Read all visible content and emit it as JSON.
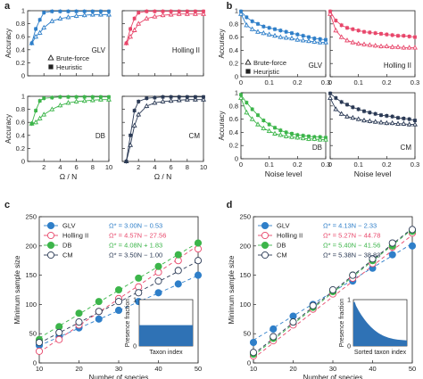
{
  "panel_letters": [
    "a",
    "b",
    "c",
    "d"
  ],
  "colors": {
    "GLV": "#2f7fc9",
    "Holling II": "#e8476b",
    "DB": "#3cb54a",
    "CM": "#2b3a55",
    "axis": "#222222",
    "inset_fill": "#2f72b5"
  },
  "chart_data": [
    {
      "id": "a-GLV",
      "type": "line",
      "panel_label": "GLV",
      "xlabel": "",
      "ylabel": "Accuracy",
      "xlim": [
        0,
        10
      ],
      "ylim": [
        0,
        1
      ],
      "xticks": [
        2,
        4,
        6,
        8,
        10
      ],
      "yticks": [
        0,
        0.2,
        0.4,
        0.6,
        0.8,
        1
      ],
      "ticklabels_x": false,
      "ticklabels_y": true,
      "legend": [
        "Brute-force",
        "Heuristic"
      ],
      "series": [
        {
          "name": "Brute-force",
          "marker": "triangle-open",
          "x": [
            0.5,
            1,
            1.5,
            2,
            3,
            4,
            5,
            6,
            7,
            8,
            9,
            10
          ],
          "y": [
            0.5,
            0.6,
            0.66,
            0.74,
            0.84,
            0.88,
            0.9,
            0.92,
            0.93,
            0.94,
            0.94,
            0.94
          ]
        },
        {
          "name": "Heuristic",
          "marker": "square-filled",
          "x": [
            0.5,
            1,
            1.5,
            2,
            3,
            4,
            5,
            6,
            7,
            8,
            9,
            10
          ],
          "y": [
            0.5,
            0.72,
            0.86,
            0.97,
            0.99,
            0.99,
            0.99,
            0.99,
            0.99,
            0.99,
            0.99,
            0.99
          ]
        }
      ]
    },
    {
      "id": "a-Holling",
      "type": "line",
      "panel_label": "Holling II",
      "xlabel": "",
      "ylabel": "",
      "xlim": [
        0,
        10
      ],
      "ylim": [
        0,
        1
      ],
      "xticks": [
        2,
        4,
        6,
        8,
        10
      ],
      "yticks": [
        0,
        0.2,
        0.4,
        0.6,
        0.8,
        1
      ],
      "ticklabels_x": false,
      "ticklabels_y": false,
      "series": [
        {
          "name": "Brute-force",
          "marker": "triangle-open",
          "x": [
            0.5,
            1,
            1.5,
            2,
            3,
            4,
            5,
            6,
            7,
            8,
            9,
            10
          ],
          "y": [
            0.5,
            0.6,
            0.7,
            0.8,
            0.88,
            0.91,
            0.93,
            0.94,
            0.95,
            0.95,
            0.95,
            0.95
          ]
        },
        {
          "name": "Heuristic",
          "marker": "square-filled",
          "x": [
            0.5,
            1,
            1.5,
            2,
            3,
            4,
            5,
            6,
            7,
            8,
            9,
            10
          ],
          "y": [
            0.5,
            0.72,
            0.88,
            0.97,
            0.99,
            0.99,
            0.99,
            0.99,
            0.99,
            0.99,
            0.99,
            0.99
          ]
        }
      ]
    },
    {
      "id": "a-DB",
      "type": "line",
      "panel_label": "DB",
      "xlabel": "Ω / N",
      "ylabel": "Accuracy",
      "xlim": [
        0,
        10
      ],
      "ylim": [
        0,
        1
      ],
      "xticks": [
        2,
        4,
        6,
        8,
        10
      ],
      "yticks": [
        0,
        0.2,
        0.4,
        0.6,
        0.8,
        1
      ],
      "ticklabels_x": true,
      "ticklabels_y": true,
      "series": [
        {
          "name": "Brute-force",
          "marker": "triangle-open",
          "x": [
            0.5,
            1,
            1.5,
            2,
            3,
            4,
            5,
            6,
            7,
            8,
            9,
            10
          ],
          "y": [
            0.58,
            0.6,
            0.66,
            0.72,
            0.8,
            0.86,
            0.9,
            0.92,
            0.93,
            0.94,
            0.95,
            0.95
          ]
        },
        {
          "name": "Heuristic",
          "marker": "square-filled",
          "x": [
            0.5,
            1,
            1.5,
            2,
            3,
            4,
            5,
            6,
            7,
            8,
            9,
            10
          ],
          "y": [
            0.58,
            0.78,
            0.93,
            0.97,
            0.98,
            0.99,
            0.99,
            0.99,
            0.99,
            0.99,
            0.99,
            0.99
          ]
        }
      ]
    },
    {
      "id": "a-CM",
      "type": "line",
      "panel_label": "CM",
      "xlabel": "Ω / N",
      "ylabel": "",
      "xlim": [
        0,
        10
      ],
      "ylim": [
        0,
        1
      ],
      "xticks": [
        2,
        4,
        6,
        8,
        10
      ],
      "yticks": [
        0,
        0.2,
        0.4,
        0.6,
        0.8,
        1
      ],
      "ticklabels_x": true,
      "ticklabels_y": false,
      "series": [
        {
          "name": "Brute-force",
          "marker": "triangle-open",
          "x": [
            0.5,
            1,
            1.5,
            2,
            3,
            4,
            5,
            6,
            7,
            8,
            9,
            10
          ],
          "y": [
            0.0,
            0.25,
            0.55,
            0.72,
            0.85,
            0.9,
            0.92,
            0.93,
            0.94,
            0.95,
            0.95,
            0.95
          ]
        },
        {
          "name": "Heuristic",
          "marker": "square-filled",
          "x": [
            0.5,
            1,
            1.5,
            2,
            3,
            4,
            5,
            6,
            7,
            8,
            9,
            10
          ],
          "y": [
            0.0,
            0.4,
            0.78,
            0.92,
            0.97,
            0.98,
            0.99,
            0.99,
            0.99,
            0.99,
            0.99,
            0.99
          ]
        }
      ]
    },
    {
      "id": "b-GLV",
      "type": "line",
      "panel_label": "GLV",
      "xlabel": "",
      "ylabel": "Accuracy",
      "xlim": [
        0,
        0.3
      ],
      "ylim": [
        0,
        1
      ],
      "xticks": [
        0,
        0.1,
        0.2,
        0.3
      ],
      "yticks": [
        0,
        0.2,
        0.4,
        0.6,
        0.8,
        1
      ],
      "ticklabels_x": true,
      "ticklabels_y": true,
      "legend": [
        "Brute-force",
        "Heuristic"
      ],
      "series": [
        {
          "name": "Heuristic",
          "marker": "square-filled",
          "x": [
            0,
            0.02,
            0.04,
            0.06,
            0.08,
            0.1,
            0.12,
            0.14,
            0.16,
            0.18,
            0.2,
            0.22,
            0.24,
            0.26,
            0.28,
            0.3
          ],
          "y": [
            0.99,
            0.9,
            0.84,
            0.8,
            0.76,
            0.74,
            0.72,
            0.7,
            0.68,
            0.66,
            0.64,
            0.62,
            0.6,
            0.58,
            0.57,
            0.56
          ]
        },
        {
          "name": "Brute-force",
          "marker": "triangle-open",
          "x": [
            0,
            0.02,
            0.04,
            0.06,
            0.08,
            0.1,
            0.12,
            0.14,
            0.16,
            0.18,
            0.2,
            0.22,
            0.24,
            0.26,
            0.28,
            0.3
          ],
          "y": [
            0.95,
            0.78,
            0.72,
            0.68,
            0.66,
            0.64,
            0.62,
            0.6,
            0.59,
            0.58,
            0.56,
            0.55,
            0.54,
            0.53,
            0.52,
            0.52
          ]
        }
      ]
    },
    {
      "id": "b-Holling",
      "type": "line",
      "panel_label": "Holling II",
      "xlabel": "",
      "ylabel": "",
      "xlim": [
        0,
        0.3
      ],
      "ylim": [
        0,
        1
      ],
      "xticks": [
        0,
        0.1,
        0.2,
        0.3
      ],
      "yticks": [
        0,
        0.2,
        0.4,
        0.6,
        0.8,
        1
      ],
      "ticklabels_x": true,
      "ticklabels_y": false,
      "series": [
        {
          "name": "Heuristic",
          "marker": "square-filled",
          "x": [
            0,
            0.02,
            0.04,
            0.06,
            0.08,
            0.1,
            0.12,
            0.14,
            0.16,
            0.18,
            0.2,
            0.22,
            0.24,
            0.26,
            0.28,
            0.3
          ],
          "y": [
            0.99,
            0.85,
            0.78,
            0.74,
            0.72,
            0.7,
            0.68,
            0.67,
            0.66,
            0.65,
            0.64,
            0.63,
            0.62,
            0.62,
            0.61,
            0.6
          ]
        },
        {
          "name": "Brute-force",
          "marker": "triangle-open",
          "x": [
            0,
            0.02,
            0.04,
            0.06,
            0.08,
            0.1,
            0.12,
            0.14,
            0.16,
            0.18,
            0.2,
            0.22,
            0.24,
            0.26,
            0.28,
            0.3
          ],
          "y": [
            0.95,
            0.7,
            0.6,
            0.55,
            0.52,
            0.5,
            0.49,
            0.48,
            0.47,
            0.46,
            0.46,
            0.45,
            0.45,
            0.44,
            0.44,
            0.44
          ]
        }
      ]
    },
    {
      "id": "b-DB",
      "type": "line",
      "panel_label": "DB",
      "xlabel": "Noise level",
      "ylabel": "Accuracy",
      "xlim": [
        0,
        0.3
      ],
      "ylim": [
        0,
        1
      ],
      "xticks": [
        0,
        0.1,
        0.2,
        0.3
      ],
      "yticks": [
        0,
        0.2,
        0.4,
        0.6,
        0.8,
        1
      ],
      "ticklabels_x": true,
      "ticklabels_y": true,
      "series": [
        {
          "name": "Heuristic",
          "marker": "square-filled",
          "x": [
            0,
            0.02,
            0.04,
            0.06,
            0.08,
            0.1,
            0.12,
            0.14,
            0.16,
            0.18,
            0.2,
            0.22,
            0.24,
            0.26,
            0.28,
            0.3
          ],
          "y": [
            0.97,
            0.85,
            0.75,
            0.66,
            0.58,
            0.52,
            0.47,
            0.43,
            0.4,
            0.38,
            0.36,
            0.35,
            0.34,
            0.33,
            0.33,
            0.32
          ]
        },
        {
          "name": "Brute-force",
          "marker": "triangle-open",
          "x": [
            0,
            0.02,
            0.04,
            0.06,
            0.08,
            0.1,
            0.12,
            0.14,
            0.16,
            0.18,
            0.2,
            0.22,
            0.24,
            0.26,
            0.28,
            0.3
          ],
          "y": [
            0.92,
            0.7,
            0.6,
            0.52,
            0.46,
            0.42,
            0.38,
            0.36,
            0.34,
            0.33,
            0.32,
            0.31,
            0.3,
            0.3,
            0.29,
            0.29
          ]
        }
      ]
    },
    {
      "id": "b-CM",
      "type": "line",
      "panel_label": "CM",
      "xlabel": "Noise level",
      "ylabel": "",
      "xlim": [
        0,
        0.3
      ],
      "ylim": [
        0,
        1
      ],
      "xticks": [
        0,
        0.1,
        0.2,
        0.3
      ],
      "yticks": [
        0,
        0.2,
        0.4,
        0.6,
        0.8,
        1
      ],
      "ticklabels_x": true,
      "ticklabels_y": false,
      "series": [
        {
          "name": "Heuristic",
          "marker": "square-filled",
          "x": [
            0,
            0.02,
            0.04,
            0.06,
            0.08,
            0.1,
            0.12,
            0.14,
            0.16,
            0.18,
            0.2,
            0.22,
            0.24,
            0.26,
            0.28,
            0.3
          ],
          "y": [
            0.99,
            0.92,
            0.86,
            0.82,
            0.78,
            0.75,
            0.72,
            0.7,
            0.68,
            0.66,
            0.65,
            0.64,
            0.62,
            0.61,
            0.6,
            0.58
          ]
        },
        {
          "name": "Brute-force",
          "marker": "triangle-open",
          "x": [
            0,
            0.02,
            0.04,
            0.06,
            0.08,
            0.1,
            0.12,
            0.14,
            0.16,
            0.18,
            0.2,
            0.22,
            0.24,
            0.26,
            0.28,
            0.3
          ],
          "y": [
            0.92,
            0.75,
            0.68,
            0.64,
            0.62,
            0.6,
            0.58,
            0.57,
            0.56,
            0.55,
            0.54,
            0.54,
            0.53,
            0.53,
            0.52,
            0.52
          ]
        }
      ]
    },
    {
      "id": "c",
      "type": "scatter",
      "xlabel": "Number of species",
      "ylabel": "Minimum sample size",
      "xlim": [
        10,
        50
      ],
      "ylim": [
        0,
        250
      ],
      "xticks": [
        10,
        20,
        30,
        40,
        50
      ],
      "yticks": [
        0,
        50,
        100,
        150,
        200,
        250
      ],
      "legend_placement": "top-left",
      "series": [
        {
          "name": "GLV",
          "marker": "circle-filled",
          "fit": "Ω* = 3.00N − 0.53",
          "slope": 3.0,
          "intercept": -0.53,
          "x": [
            10,
            15,
            20,
            25,
            30,
            35,
            40,
            45,
            50
          ],
          "y": [
            30,
            45,
            60,
            75,
            90,
            105,
            120,
            135,
            150
          ]
        },
        {
          "name": "Holling II",
          "marker": "circle-open",
          "fit": "Ω* = 4.57N − 27.56",
          "slope": 4.57,
          "intercept": -27.56,
          "x": [
            10,
            15,
            20,
            25,
            30,
            35,
            40,
            45,
            50
          ],
          "y": [
            20,
            40,
            65,
            88,
            110,
            130,
            155,
            175,
            195
          ]
        },
        {
          "name": "DB",
          "marker": "circle-filled",
          "fit": "Ω* = 4.08N + 1.83",
          "slope": 4.08,
          "intercept": 1.83,
          "x": [
            10,
            15,
            20,
            25,
            30,
            35,
            40,
            45,
            50
          ],
          "y": [
            40,
            62,
            85,
            105,
            125,
            145,
            165,
            185,
            205
          ]
        },
        {
          "name": "CM",
          "marker": "circle-open",
          "fit": "Ω* = 3.50N − 1.00",
          "slope": 3.5,
          "intercept": -1.0,
          "x": [
            10,
            15,
            20,
            25,
            30,
            35,
            40,
            45,
            50
          ],
          "y": [
            35,
            52,
            70,
            88,
            105,
            120,
            140,
            158,
            175
          ]
        }
      ],
      "inset": {
        "ylabel": "Presence fraction",
        "xlabel": "Taxon index",
        "yticks": [
          0,
          1
        ],
        "shape": "flat",
        "level": 0.45
      }
    },
    {
      "id": "d",
      "type": "scatter",
      "xlabel": "Number of species",
      "ylabel": "Minimum sample size",
      "xlim": [
        10,
        50
      ],
      "ylim": [
        0,
        250
      ],
      "xticks": [
        10,
        20,
        30,
        40,
        50
      ],
      "yticks": [
        0,
        50,
        100,
        150,
        200,
        250
      ],
      "legend_placement": "top-left",
      "series": [
        {
          "name": "GLV",
          "marker": "circle-filled",
          "fit": "Ω* = 4.13N − 2.33",
          "slope": 4.13,
          "intercept": -2.33,
          "x": [
            10,
            15,
            20,
            25,
            30,
            35,
            40,
            45,
            50
          ],
          "y": [
            35,
            58,
            80,
            100,
            120,
            140,
            162,
            185,
            200
          ]
        },
        {
          "name": "Holling II",
          "marker": "circle-open",
          "fit": "Ω* = 5.27N − 44.78",
          "slope": 5.27,
          "intercept": -44.78,
          "x": [
            10,
            15,
            20,
            25,
            30,
            35,
            40,
            45,
            50
          ],
          "y": [
            12,
            38,
            65,
            92,
            118,
            145,
            170,
            198,
            222
          ]
        },
        {
          "name": "DB",
          "marker": "circle-filled",
          "fit": "Ω* = 5.40N − 41.56",
          "slope": 5.4,
          "intercept": -41.56,
          "x": [
            10,
            15,
            20,
            25,
            30,
            35,
            40,
            45,
            50
          ],
          "y": [
            15,
            42,
            70,
            95,
            122,
            150,
            175,
            200,
            225
          ]
        },
        {
          "name": "CM",
          "marker": "circle-open",
          "fit": "Ω* = 5.38N − 38.83",
          "slope": 5.38,
          "intercept": -38.83,
          "x": [
            10,
            15,
            20,
            25,
            30,
            35,
            40,
            45,
            50
          ],
          "y": [
            18,
            45,
            70,
            98,
            125,
            150,
            178,
            205,
            228
          ]
        }
      ],
      "inset": {
        "ylabel": "Presence fraction",
        "xlabel": "Sorted taxon index",
        "yticks": [
          0,
          1
        ],
        "shape": "decay"
      }
    }
  ]
}
